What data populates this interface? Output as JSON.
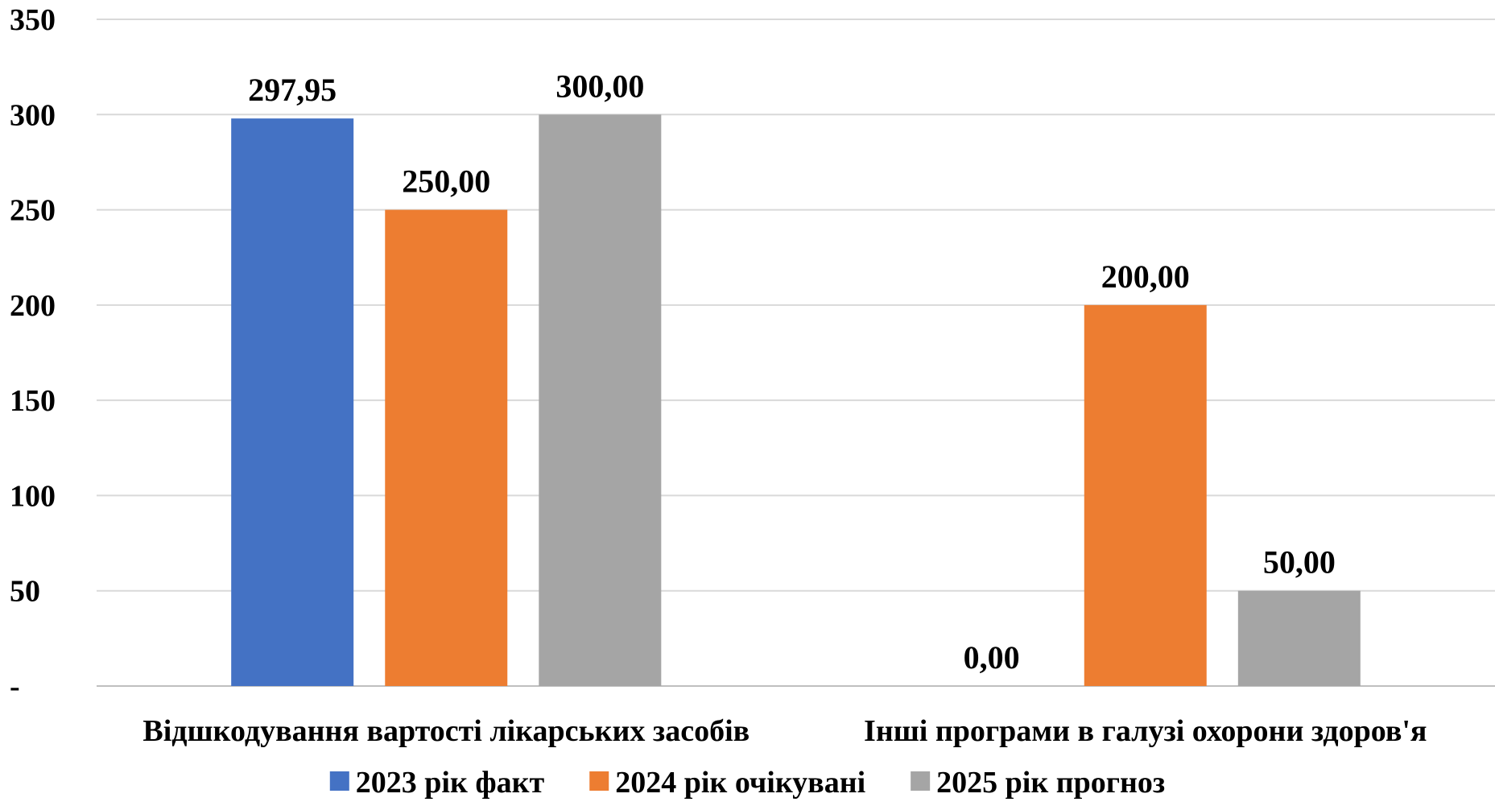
{
  "chart_data": {
    "type": "bar",
    "title": "",
    "xlabel": "",
    "ylabel": "",
    "ylim": [
      0,
      350
    ],
    "yticks": [
      0,
      50,
      100,
      150,
      200,
      250,
      300,
      350
    ],
    "ytick_labels": [
      "-",
      "50",
      "100",
      "150",
      "200",
      "250",
      "300",
      "350"
    ],
    "grid": true,
    "legend_position": "bottom",
    "categories": [
      "Відшкодування вартості лікарських засобів",
      "Інші програми в галузі охорони здоров'я"
    ],
    "series": [
      {
        "name": "2023 рік факт",
        "color": "#4472C4",
        "values": [
          297.95,
          0
        ],
        "labels": [
          "297,95",
          "0,00"
        ]
      },
      {
        "name": "2024 рік очікувані",
        "color": "#ED7D31",
        "values": [
          250,
          200
        ],
        "labels": [
          "250,00",
          "200,00"
        ]
      },
      {
        "name": "2025 рік прогноз",
        "color": "#A5A5A5",
        "values": [
          300,
          50
        ],
        "labels": [
          "300,00",
          "50,00"
        ]
      }
    ]
  }
}
